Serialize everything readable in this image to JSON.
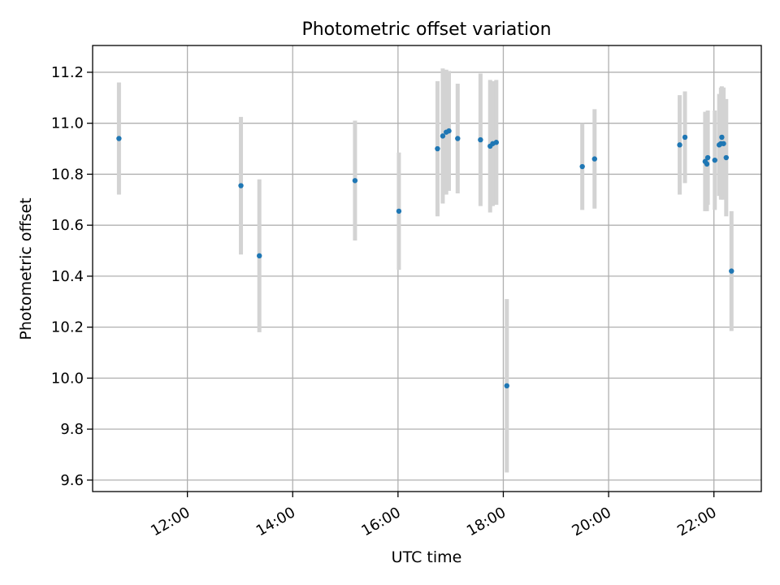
{
  "chart_data": {
    "type": "scatter",
    "title": "Photometric offset variation",
    "xlabel": "UTC time",
    "ylabel": "Photometric offset",
    "x_unit": "hours (UTC)",
    "xlim": [
      "10:12",
      "22:54"
    ],
    "ylim": [
      9.555,
      11.305
    ],
    "grid": true,
    "x_ticks": [
      "12:00",
      "14:00",
      "16:00",
      "18:00",
      "20:00",
      "22:00"
    ],
    "y_ticks": [
      "9.6",
      "9.8",
      "10.0",
      "10.2",
      "10.4",
      "10.6",
      "10.8",
      "11.0",
      "11.2"
    ],
    "point_color": "#1f77b4",
    "errorbar_color": "#d3d3d3",
    "points": [
      {
        "x": "10:42",
        "y": 10.94,
        "yerr": 0.22
      },
      {
        "x": "13:01",
        "y": 10.755,
        "yerr": 0.27
      },
      {
        "x": "13:22",
        "y": 10.48,
        "yerr": 0.3
      },
      {
        "x": "15:11",
        "y": 10.775,
        "yerr": 0.235
      },
      {
        "x": "16:01",
        "y": 10.655,
        "yerr": 0.23
      },
      {
        "x": "16:45",
        "y": 10.9,
        "yerr": 0.265
      },
      {
        "x": "16:51",
        "y": 10.95,
        "yerr": 0.265
      },
      {
        "x": "16:55",
        "y": 10.965,
        "yerr": 0.245
      },
      {
        "x": "16:58",
        "y": 10.97,
        "yerr": 0.235
      },
      {
        "x": "17:08",
        "y": 10.94,
        "yerr": 0.215
      },
      {
        "x": "17:34",
        "y": 10.935,
        "yerr": 0.26
      },
      {
        "x": "17:45",
        "y": 10.91,
        "yerr": 0.26
      },
      {
        "x": "17:48",
        "y": 10.92,
        "yerr": 0.245
      },
      {
        "x": "17:52",
        "y": 10.925,
        "yerr": 0.245
      },
      {
        "x": "18:04",
        "y": 9.97,
        "yerr": 0.34
      },
      {
        "x": "19:30",
        "y": 10.83,
        "yerr": 0.17
      },
      {
        "x": "19:44",
        "y": 10.86,
        "yerr": 0.195
      },
      {
        "x": "21:21",
        "y": 10.915,
        "yerr": 0.195
      },
      {
        "x": "21:27",
        "y": 10.945,
        "yerr": 0.18
      },
      {
        "x": "21:50",
        "y": 10.85,
        "yerr": 0.195
      },
      {
        "x": "21:52",
        "y": 10.84,
        "yerr": 0.185
      },
      {
        "x": "21:53",
        "y": 10.865,
        "yerr": 0.185
      },
      {
        "x": "22:01",
        "y": 10.855,
        "yerr": 0.195
      },
      {
        "x": "22:06",
        "y": 10.915,
        "yerr": 0.2
      },
      {
        "x": "22:08",
        "y": 10.92,
        "yerr": 0.22
      },
      {
        "x": "22:09",
        "y": 10.945,
        "yerr": 0.2
      },
      {
        "x": "22:11",
        "y": 10.92,
        "yerr": 0.22
      },
      {
        "x": "22:14",
        "y": 10.865,
        "yerr": 0.23
      },
      {
        "x": "22:20",
        "y": 10.42,
        "yerr": 0.235
      }
    ]
  }
}
